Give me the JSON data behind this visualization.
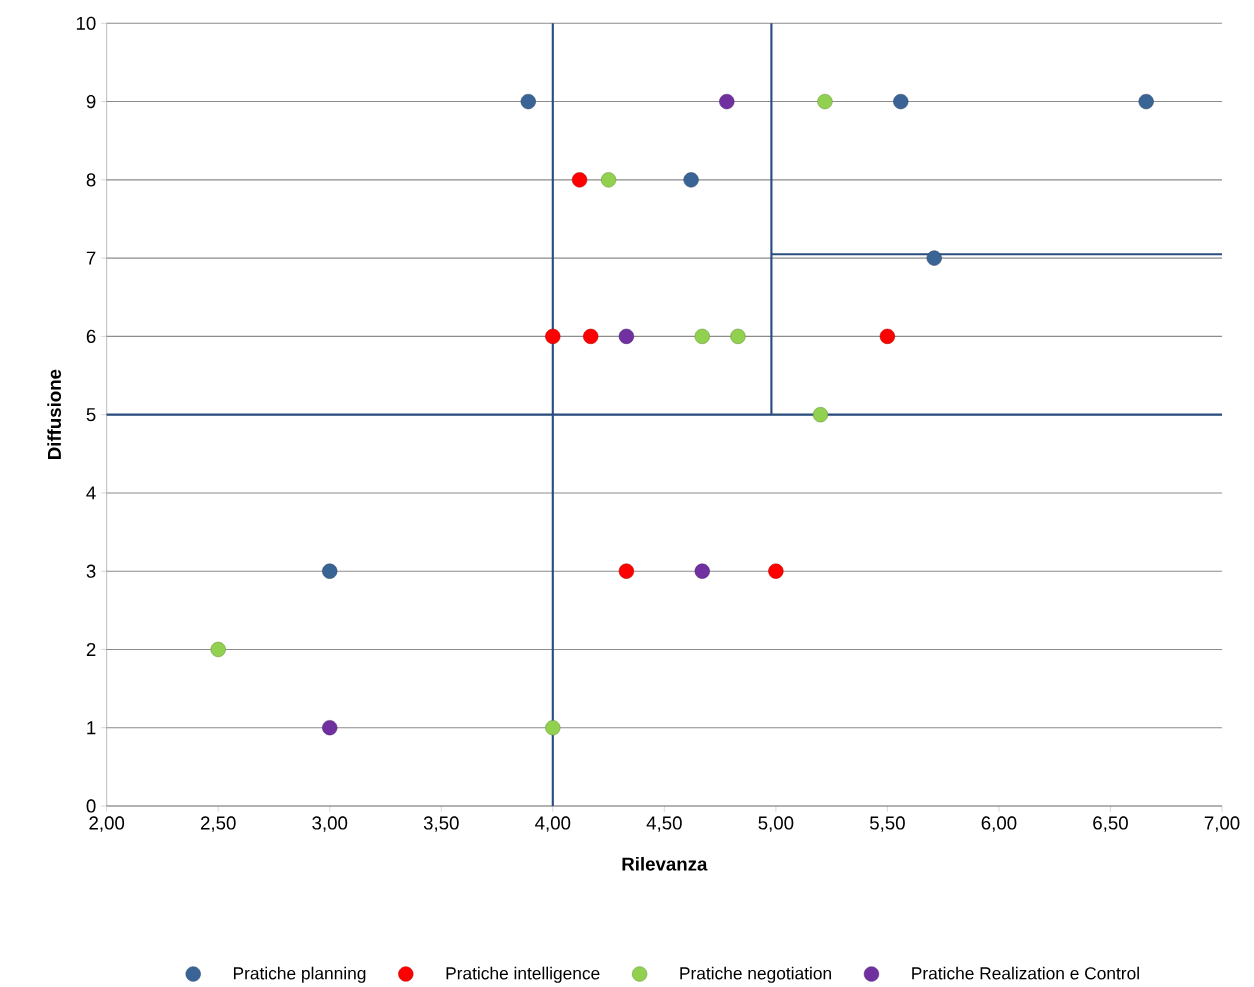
{
  "chart_data": {
    "type": "scatter",
    "xlabel": "Rilevanza",
    "ylabel": "Diffusione",
    "xlim": [
      2,
      7
    ],
    "ylim": [
      0,
      10
    ],
    "xticks": [
      {
        "value": 2,
        "label": "2,00"
      },
      {
        "value": 2.5,
        "label": "2,50"
      },
      {
        "value": 3,
        "label": "3,00"
      },
      {
        "value": 3.5,
        "label": "3,50"
      },
      {
        "value": 4,
        "label": "4,00"
      },
      {
        "value": 4.5,
        "label": "4,50"
      },
      {
        "value": 5,
        "label": "5,00"
      },
      {
        "value": 5.5,
        "label": "5,50"
      },
      {
        "value": 6,
        "label": "6,00"
      },
      {
        "value": 6.5,
        "label": "6,50"
      },
      {
        "value": 7,
        "label": "7,00"
      }
    ],
    "yticks": [
      0,
      1,
      2,
      3,
      4,
      5,
      6,
      7,
      8,
      9,
      10
    ],
    "grid": "y",
    "legend": "bottom",
    "marker": "circle",
    "ref_lines": [
      {
        "axis": "x",
        "value": 4,
        "color": "#2b4c7e"
      },
      {
        "axis": "y",
        "value": 5,
        "color": "#2b4c7e"
      }
    ],
    "series": [
      {
        "name": "Pratiche planning",
        "color": "#3a6496",
        "x": [
          3.89,
          5.56,
          6.66,
          4.62,
          5.71,
          3.0
        ],
        "values": [
          9,
          9,
          9,
          8,
          7,
          3
        ]
      },
      {
        "name": "Pratiche intelligence",
        "color": "#ff0000",
        "x": [
          4.12,
          4.0,
          4.17,
          5.5,
          4.33,
          5.0
        ],
        "values": [
          8,
          6,
          6,
          6,
          3,
          3
        ]
      },
      {
        "name": "Pratiche negotiation",
        "color": "#92d050",
        "x": [
          4.25,
          5.22,
          4.67,
          4.83,
          5.2,
          2.5,
          4.0
        ],
        "values": [
          8,
          9,
          6,
          6,
          5,
          2,
          1
        ]
      },
      {
        "name": "Pratiche Realization e Control",
        "color": "#7030a0",
        "x": [
          4.78,
          4.33,
          4.67,
          3.0
        ],
        "values": [
          9,
          6,
          3,
          1
        ]
      },
      {
        "type": "line",
        "marker": "none",
        "color": "#2b4c7e",
        "x": [
          4.98,
          4.98
        ],
        "values": [
          5,
          10
        ]
      },
      {
        "type": "line",
        "marker": "none",
        "color": "#2b4c7e",
        "x": [
          4.98,
          7.0
        ],
        "values": [
          7.05,
          7.05
        ]
      }
    ]
  }
}
